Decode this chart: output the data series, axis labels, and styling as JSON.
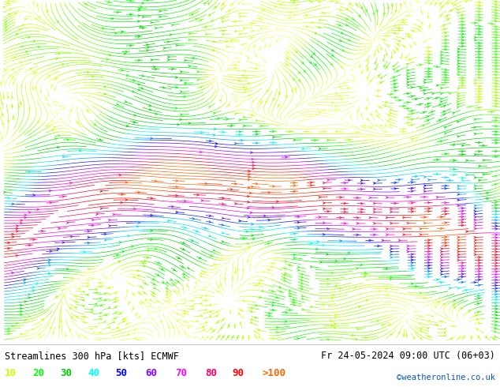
{
  "title_left": "Streamlines 300 hPa [kts] ECMWF",
  "title_right": "Fr 24-05-2024 09:00 UTC (06+03)",
  "credit": "©weatheronline.co.uk",
  "legend_values": [
    "10",
    "20",
    "30",
    "40",
    "50",
    "60",
    "70",
    "80",
    "90",
    ">100"
  ],
  "legend_colors": [
    "#ccff00",
    "#00ff00",
    "#00cc00",
    "#00ffff",
    "#0000ff",
    "#8800ff",
    "#ff00ff",
    "#ff0066",
    "#ff0000",
    "#ff6600"
  ],
  "bg_color": "#ffffff",
  "fig_width": 6.34,
  "fig_height": 4.9,
  "dpi": 100,
  "color_list": [
    "#ffff99",
    "#ccff00",
    "#00ff00",
    "#00cc00",
    "#00ffff",
    "#00aaff",
    "#0000ff",
    "#8800ff",
    "#ff00ff",
    "#ff0066",
    "#ff0000",
    "#ff6600"
  ],
  "seed": 1234
}
